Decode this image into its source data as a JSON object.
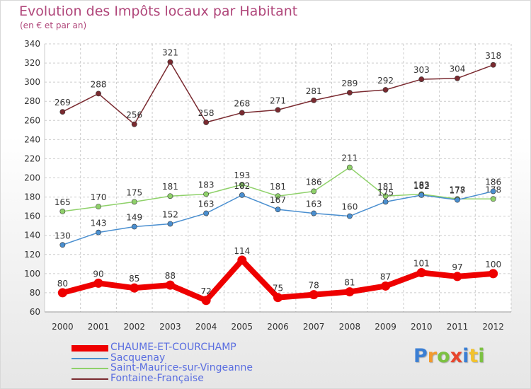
{
  "title": "Evolution des Impôts locaux par Habitant",
  "subtitle": "(en € et par an)",
  "brand": {
    "letters": [
      "P",
      "r",
      "o",
      "x",
      "i",
      "t",
      "i"
    ],
    "colors": [
      "#3b7fd4",
      "#f29a2e",
      "#7cc142",
      "#e8452c",
      "#3b7fd4",
      "#f2c22e",
      "#7cc142"
    ]
  },
  "chart_data": {
    "type": "line",
    "title": "Evolution des Impôts locaux par Habitant",
    "subtitle": "(en € et par an)",
    "xlabel": "",
    "ylabel": "",
    "categories": [
      "2000",
      "2001",
      "2002",
      "2003",
      "2004",
      "2005",
      "2006",
      "2007",
      "2008",
      "2009",
      "2010",
      "2011",
      "2012"
    ],
    "ylim": [
      60,
      340
    ],
    "yticks": [
      60,
      80,
      100,
      120,
      140,
      160,
      180,
      200,
      220,
      240,
      260,
      280,
      300,
      320,
      340
    ],
    "grid": true,
    "legend_position": "bottom-left",
    "series": [
      {
        "name": "Fontaine-Française",
        "color": "#7a2a30",
        "values": [
          269,
          288,
          256,
          321,
          258,
          268,
          271,
          281,
          289,
          292,
          303,
          304,
          318
        ],
        "labels": [
          "269",
          "288",
          "256",
          "321",
          "258",
          "268",
          "271",
          "281",
          "289",
          "292",
          "303",
          "304",
          "318"
        ]
      },
      {
        "name": "Saint-Maurice-sur-Vingeanne",
        "color": "#8fd16a",
        "values": [
          165,
          170,
          175,
          181,
          183,
          193,
          181,
          186,
          211,
          181,
          183,
          178,
          178
        ],
        "labels": [
          "165",
          "170",
          "175",
          "181",
          "183",
          "193",
          "181",
          "186",
          "211",
          "181",
          "183",
          "178",
          "178"
        ]
      },
      {
        "name": "Sacquenay",
        "color": "#4a8fd0",
        "values": [
          130,
          143,
          149,
          152,
          163,
          182,
          167,
          163,
          160,
          175,
          182,
          177,
          186
        ],
        "labels": [
          "130",
          "143",
          "149",
          "152",
          "163",
          "182",
          "167",
          "163",
          "160",
          "175",
          "182",
          "177",
          "186"
        ]
      },
      {
        "name": "CHAUME-ET-COURCHAMP",
        "color": "#ee0000",
        "values": [
          80,
          90,
          85,
          88,
          72,
          114,
          75,
          78,
          81,
          87,
          101,
          97,
          100
        ],
        "labels": [
          "80",
          "90",
          "85",
          "88",
          "72",
          "114",
          "75",
          "78",
          "81",
          "87",
          "101",
          "97",
          "100"
        ]
      }
    ],
    "legend": [
      "CHAUME-ET-COURCHAMP",
      "Sacquenay",
      "Saint-Maurice-sur-Vingeanne",
      "Fontaine-Française"
    ]
  }
}
